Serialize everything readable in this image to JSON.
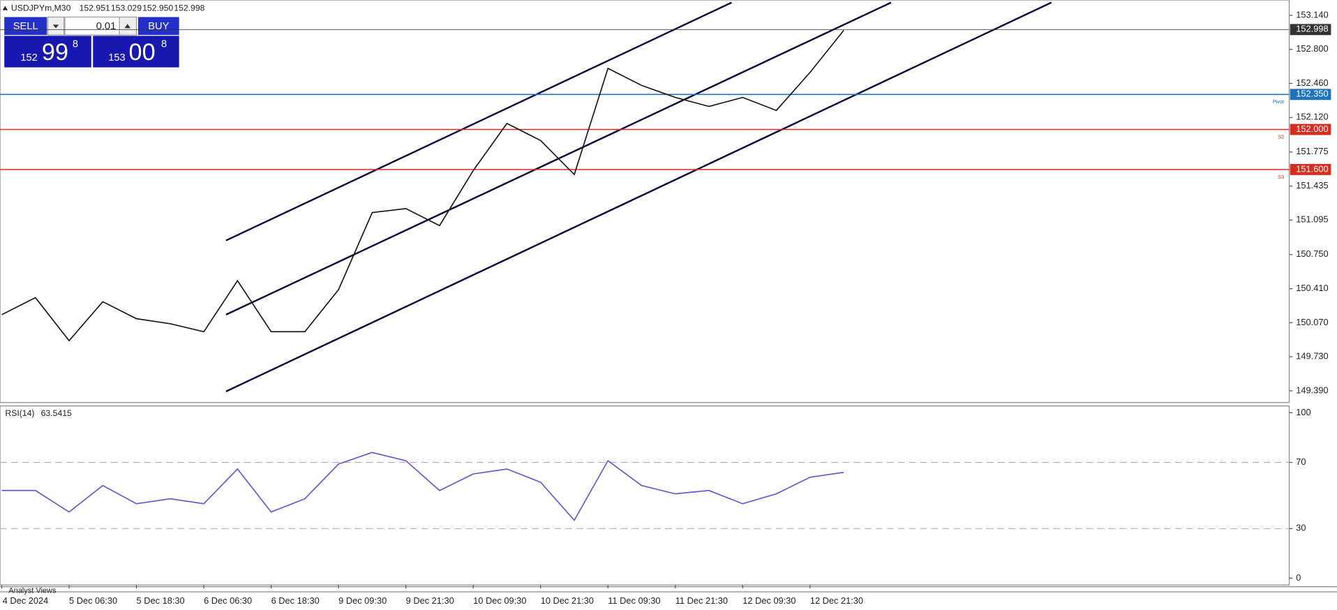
{
  "header": {
    "symbol": "USDJPYm,M30",
    "ohlc": [
      "152.951",
      "153.029",
      "152.950",
      "152.998"
    ]
  },
  "trade_panel": {
    "sell": "SELL",
    "buy": "BUY",
    "volume": "0.01",
    "bid": {
      "big": "152",
      "main": "99",
      "small": "8"
    },
    "ask": {
      "big": "153",
      "main": "00",
      "small": "8"
    }
  },
  "chart_data": [
    {
      "type": "line",
      "categories": [
        "4 Dec 2024",
        null,
        "5 Dec 06:30",
        null,
        "5 Dec 18:30",
        null,
        "6 Dec 06:30",
        null,
        "6 Dec 18:30",
        null,
        "9 Dec 09:30",
        null,
        "9 Dec 21:30",
        null,
        "10 Dec 09:30",
        null,
        "10 Dec 21:30",
        null,
        "11 Dec 09:30",
        null,
        "11 Dec 21:30",
        null,
        "12 Dec 09:30",
        null,
        "12 Dec 21:30",
        null
      ],
      "series": [
        {
          "color": "#1a1a1a",
          "values": [
            150.15,
            150.32,
            149.89,
            150.28,
            150.11,
            150.06,
            149.98,
            150.49,
            149.98,
            149.98,
            150.4,
            151.17,
            151.21,
            151.04,
            151.59,
            152.06,
            151.89,
            151.55,
            152.61,
            152.44,
            152.32,
            152.23,
            152.32,
            152.19,
            152.57,
            152.99
          ]
        }
      ],
      "ylim": [
        149.29,
        153.225
      ],
      "yticks": [
        {
          "value": 153.14,
          "label": "153.140"
        },
        {
          "value": 152.8,
          "label": "152.800"
        },
        {
          "value": 152.46,
          "label": "152.460"
        },
        {
          "value": 152.12,
          "label": "152.120"
        },
        151.775,
        151.435,
        151.095,
        {
          "value": 150.75,
          "label": "150.750"
        },
        {
          "value": 150.41,
          "label": "150.410"
        },
        {
          "value": 150.07,
          "label": "150.070"
        },
        {
          "value": 149.73,
          "label": "149.730"
        },
        {
          "value": 149.39,
          "label": "149.390"
        }
      ],
      "levels": [
        {
          "value": 152.998,
          "label": "152.998",
          "color": "#333333"
        },
        {
          "value": 152.35,
          "label": "152.350",
          "color": "#1e73be",
          "name": "Pivot"
        },
        {
          "value": 152.0,
          "label": "152.000",
          "color": "#d62d20",
          "name": "S2"
        },
        {
          "value": 151.6,
          "label": "151.600",
          "color": "#d62d20",
          "name": "S3"
        }
      ]
    },
    {
      "type": "line",
      "title": "RSI(14)",
      "last_value": 63.5415,
      "series": [
        {
          "color": "#6a5acd",
          "values": [
            53,
            53,
            40,
            56,
            45,
            48,
            45,
            66,
            40,
            48,
            69,
            76,
            71,
            53,
            63,
            66,
            58,
            35,
            71,
            56,
            51,
            53,
            45,
            51,
            61,
            64
          ]
        }
      ],
      "ylim": [
        0,
        100
      ],
      "yticks": [
        0,
        30,
        70,
        100
      ],
      "levels": [
        70,
        30
      ]
    }
  ],
  "footer_tab": "Analyst Views"
}
